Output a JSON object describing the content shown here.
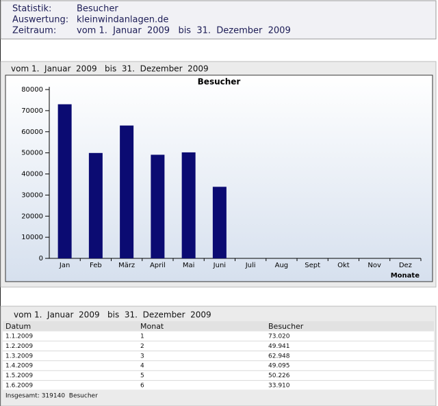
{
  "header": {
    "rows": [
      [
        "Statistik:",
        "Besucher"
      ],
      [
        "Auswertung:",
        "kleinwindanlagen.de"
      ],
      [
        "Zeitraum:",
        "vom 1.  Januar  2009   bis  31.  Dezember  2009"
      ]
    ]
  },
  "chart_section": {
    "title": "vom 1.  Januar  2009   bis  31.  Dezember  2009"
  },
  "chart_data": {
    "type": "bar",
    "title": "Besucher",
    "x_label": "Monate",
    "categories": [
      "Jan",
      "Feb",
      "März",
      "April",
      "Mai",
      "Juni",
      "Juli",
      "Aug",
      "Sept",
      "Okt",
      "Nov",
      "Dez"
    ],
    "values": [
      73020,
      49941,
      62948,
      49095,
      50226,
      33910,
      null,
      null,
      null,
      null,
      null,
      null
    ],
    "color": "#0b0b72",
    "ylim": [
      0,
      80000
    ],
    "yticks": [
      0,
      10000,
      20000,
      30000,
      40000,
      50000,
      60000,
      70000,
      80000
    ]
  },
  "table": {
    "title": "vom 1.  Januar  2009   bis  31.  Dezember  2009",
    "columns": [
      "Datum",
      "Monat",
      "Besucher"
    ],
    "rows": [
      [
        "1.1.2009",
        "1",
        "73.020"
      ],
      [
        "1.2.2009",
        "2",
        "49.941"
      ],
      [
        "1.3.2009",
        "3",
        "62.948"
      ],
      [
        "1.4.2009",
        "4",
        "49.095"
      ],
      [
        "1.5.2009",
        "5",
        "50.226"
      ],
      [
        "1.6.2009",
        "6",
        "33.910"
      ]
    ],
    "footer": "Insgesamt: 319140  Besucher"
  }
}
